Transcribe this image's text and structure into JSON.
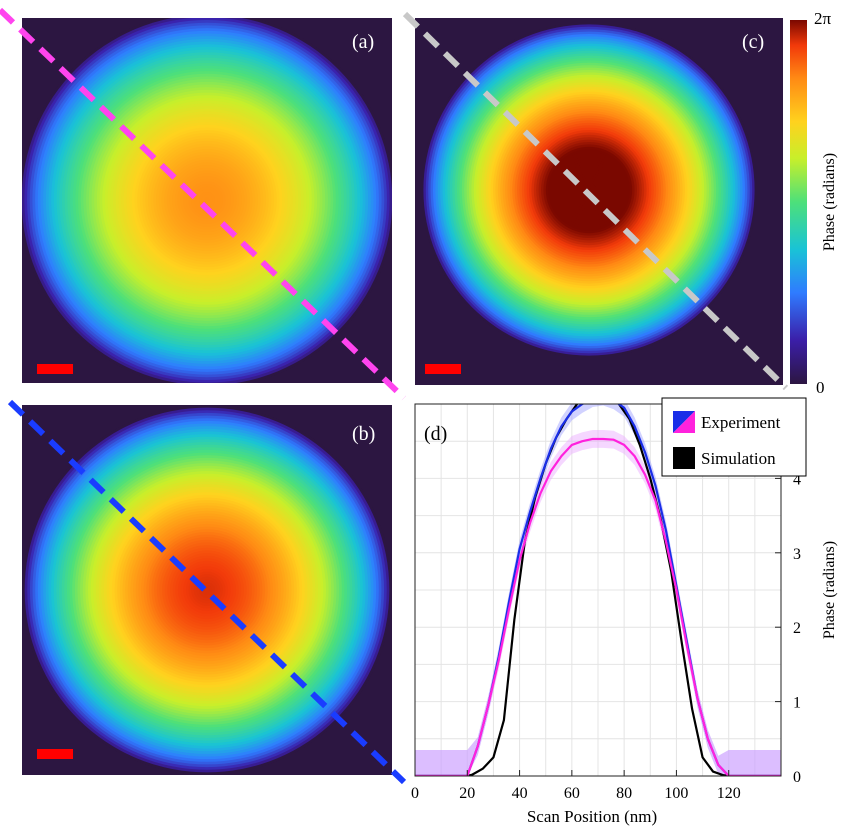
{
  "panels": {
    "a": {
      "label": "(a)",
      "line_color": "#ff44ee",
      "peak": 0.72,
      "sigma": 170,
      "radius": 188
    },
    "b": {
      "label": "(b)",
      "line_color": "#1a3cff",
      "peak": 0.82,
      "sigma": 150,
      "radius": 185
    },
    "c": {
      "label": "(c)",
      "line_color": "#c8c8c8",
      "peak": 0.93,
      "sigma": 118,
      "radius": 168
    }
  },
  "scale_bar_color": "#ff0000",
  "background_color": "#2c1641",
  "colorbar": {
    "label": "Phase (radians)",
    "max_label": "2π",
    "min_label": "0"
  },
  "chart_data": {
    "type": "line",
    "panel_label": "(d)",
    "xlabel": "Scan Position (nm)",
    "ylabel": "Phase (radians)",
    "xlim": [
      0,
      140
    ],
    "ylim": [
      0,
      5
    ],
    "xticks": [
      0,
      20,
      40,
      60,
      80,
      100,
      120
    ],
    "yticks": [
      0,
      1,
      2,
      3,
      4
    ],
    "grid": true,
    "legend": {
      "position": "top-right",
      "entries": [
        "Experiment",
        "Simulation"
      ]
    },
    "series": [
      {
        "name": "Simulation",
        "color": "#000000",
        "x": [
          0,
          20,
          22,
          26,
          30,
          34,
          38,
          42,
          46,
          50,
          54,
          58,
          62,
          66,
          70,
          74,
          78,
          82,
          86,
          90,
          94,
          98,
          102,
          106,
          110,
          114,
          118,
          120,
          140
        ],
        "y": [
          0,
          0,
          0.02,
          0.1,
          0.25,
          0.75,
          2.1,
          3.15,
          3.75,
          4.2,
          4.55,
          4.8,
          5.0,
          5.12,
          5.15,
          5.12,
          5.0,
          4.8,
          4.45,
          4.0,
          3.45,
          2.75,
          1.8,
          0.9,
          0.25,
          0.06,
          0.01,
          0,
          0
        ]
      },
      {
        "name": "Experiment (blue)",
        "color": "#1a2ee8",
        "band_color": "#9a9cff",
        "x": [
          0,
          20,
          24,
          28,
          32,
          36,
          40,
          44,
          48,
          52,
          56,
          60,
          64,
          68,
          72,
          76,
          80,
          84,
          88,
          92,
          96,
          100,
          104,
          108,
          112,
          116,
          120,
          140
        ],
        "y": [
          0,
          0,
          0.4,
          0.95,
          1.6,
          2.35,
          3.05,
          3.55,
          4.0,
          4.4,
          4.7,
          4.9,
          5.0,
          5.08,
          5.1,
          5.05,
          4.95,
          4.7,
          4.35,
          3.9,
          3.3,
          2.55,
          1.8,
          1.05,
          0.5,
          0.15,
          0,
          0
        ]
      },
      {
        "name": "Experiment (magenta)",
        "color": "#ff22dd",
        "band_color": "#e9a6ff",
        "x": [
          0,
          20,
          24,
          28,
          32,
          36,
          40,
          44,
          48,
          52,
          56,
          60,
          64,
          68,
          72,
          76,
          80,
          84,
          88,
          92,
          96,
          100,
          104,
          108,
          112,
          116,
          120,
          140
        ],
        "y": [
          0,
          0,
          0.4,
          0.95,
          1.55,
          2.25,
          2.9,
          3.4,
          3.8,
          4.1,
          4.3,
          4.45,
          4.5,
          4.53,
          4.53,
          4.52,
          4.45,
          4.3,
          4.05,
          3.7,
          3.15,
          2.5,
          1.75,
          1.05,
          0.5,
          0.15,
          0,
          0
        ]
      }
    ]
  }
}
